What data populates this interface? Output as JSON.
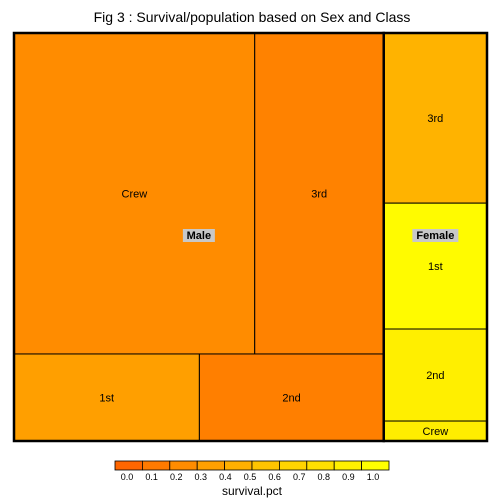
{
  "chart_data": {
    "type": "treemap",
    "title": "Fig 3 : Survival/population based on Sex and Class",
    "size_variable": "population",
    "color_variable": "survival.pct",
    "groups": [
      {
        "name": "Male",
        "cells": [
          {
            "name": "Crew",
            "population": 862,
            "survival": 0.22
          },
          {
            "name": "3rd",
            "population": 462,
            "survival": 0.16
          },
          {
            "name": "1st",
            "population": 180,
            "survival": 0.33
          },
          {
            "name": "2nd",
            "population": 179,
            "survival": 0.14
          }
        ]
      },
      {
        "name": "Female",
        "cells": [
          {
            "name": "3rd",
            "population": 196,
            "survival": 0.46
          },
          {
            "name": "1st",
            "population": 145,
            "survival": 0.97
          },
          {
            "name": "2nd",
            "population": 106,
            "survival": 0.88
          },
          {
            "name": "Crew",
            "population": 23,
            "survival": 0.87
          }
        ]
      }
    ],
    "legend": {
      "title": "survival.pct",
      "range": [
        0,
        1
      ],
      "ticks": [
        "0.0",
        "0.1",
        "0.2",
        "0.3",
        "0.4",
        "0.5",
        "0.6",
        "0.7",
        "0.8",
        "0.9",
        "1.0"
      ],
      "colors": [
        "#FF6600",
        "#FF7A00",
        "#FF8C00",
        "#FFA000",
        "#FFB000",
        "#FFC400",
        "#FFD400",
        "#FFE000",
        "#FFF000",
        "#FFFF00"
      ]
    }
  }
}
